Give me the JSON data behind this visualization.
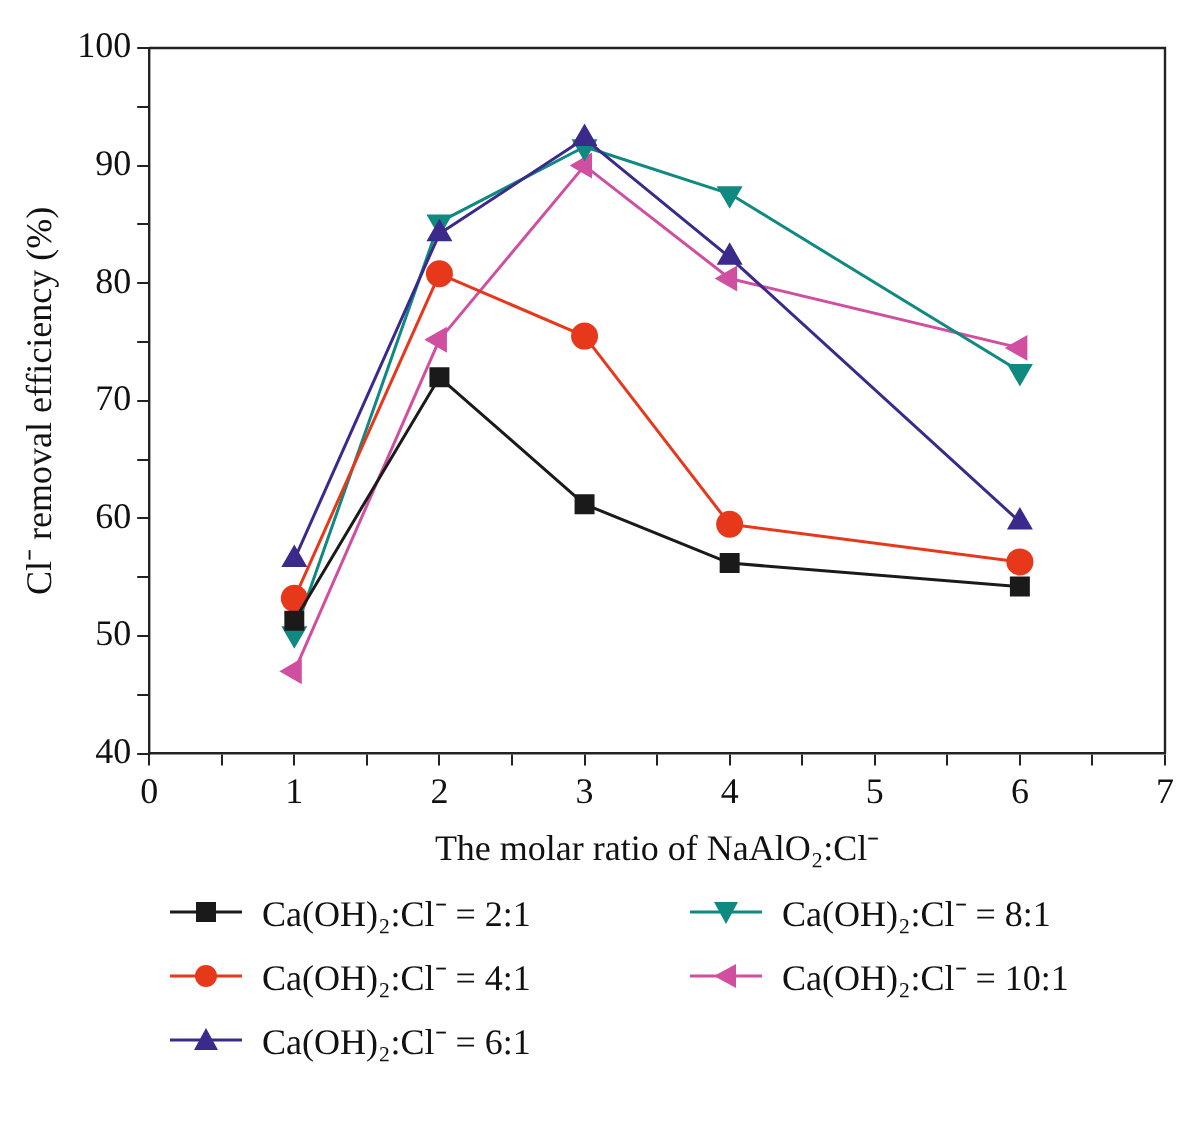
{
  "chart_data": {
    "type": "line",
    "xlabel": "The molar ratio of NaAlO₂:Cl⁻",
    "ylabel": "Cl⁻ removal efficiency (%)",
    "x": [
      1,
      2,
      3,
      4,
      6
    ],
    "series": [
      {
        "name": "Ca(OH)₂:Cl⁻ = 2:1",
        "color": "#1a1a1a",
        "marker": "square",
        "values": [
          51.3,
          72,
          61.2,
          56.2,
          54.2
        ]
      },
      {
        "name": "Ca(OH)₂:Cl⁻ = 4:1",
        "color": "#e8381c",
        "marker": "circle",
        "values": [
          53.2,
          80.8,
          75.5,
          59.5,
          56.3
        ]
      },
      {
        "name": "Ca(OH)₂:Cl⁻ = 6:1",
        "color": "#3b2a8c",
        "marker": "triangle",
        "values": [
          56.5,
          84.2,
          92.3,
          82.2,
          59.7
        ]
      },
      {
        "name": "Ca(OH)₂:Cl⁻ = 8:1",
        "color": "#0f8a80",
        "marker": "triangle-down",
        "values": [
          50.2,
          85.2,
          91.6,
          87.6,
          72.5
        ]
      },
      {
        "name": "Ca(OH)₂:Cl⁻ = 10:1",
        "color": "#d14fa0",
        "marker": "triangle-left",
        "values": [
          47,
          75.2,
          90,
          80.4,
          74.5
        ]
      }
    ],
    "xlim": [
      0,
      7
    ],
    "xticks": [
      0,
      {
        "value": 0.5,
        "label": null
      },
      1,
      {
        "value": 1.5,
        "label": null
      },
      2,
      {
        "value": 2.5,
        "label": null
      },
      3,
      {
        "value": 3.5,
        "label": null
      },
      4,
      {
        "value": 4.5,
        "label": null
      },
      5,
      {
        "value": 5.5,
        "label": null
      },
      6,
      {
        "value": 6.5,
        "label": null
      },
      7
    ],
    "ylim": [
      40,
      100
    ],
    "yticks": [
      40,
      {
        "value": 45,
        "label": null
      },
      50,
      {
        "value": 55,
        "label": null
      },
      60,
      {
        "value": 65,
        "label": null
      },
      70,
      {
        "value": 75,
        "label": null
      },
      80,
      {
        "value": 85,
        "label": null
      },
      90,
      {
        "value": 95,
        "label": null
      },
      100
    ],
    "grid": false,
    "legend": "bottom",
    "line_style": "solid"
  }
}
